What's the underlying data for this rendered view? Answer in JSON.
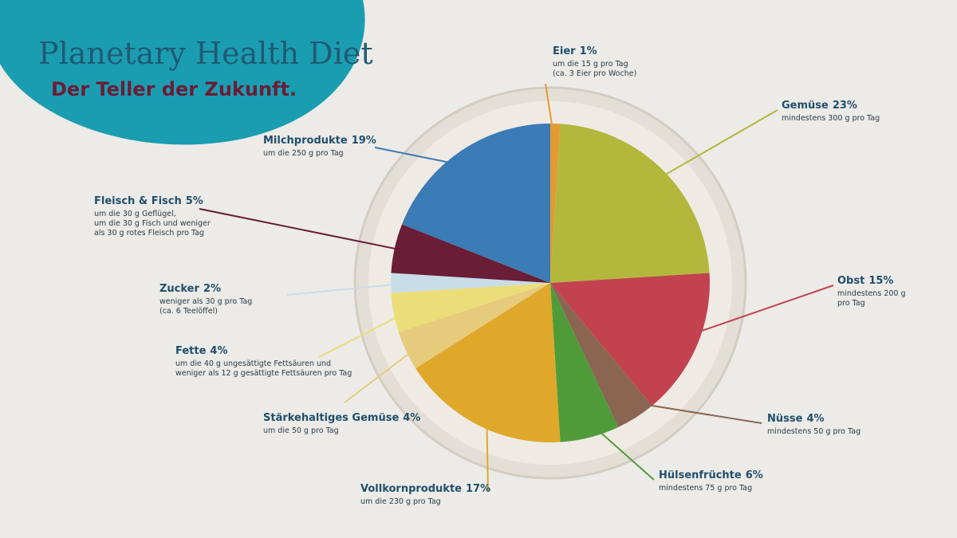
{
  "chart_data": {
    "type": "pie",
    "title": "Planetary Health Diet",
    "subtitle": "Der Teller der Zukunft.",
    "categories": [
      "Eier",
      "Gemüse",
      "Obst",
      "Nüsse",
      "Hülsenfrüchte",
      "Vollkornprodukte",
      "Stärkehaltiges Gemüse",
      "Fette",
      "Zucker",
      "Fleisch & Fisch",
      "Milchprodukte"
    ],
    "values": [
      1,
      23,
      15,
      4,
      6,
      17,
      4,
      4,
      2,
      5,
      19
    ],
    "value_labels": [
      "1%",
      "23%",
      "15%",
      "4%",
      "6%",
      "17%",
      "4%",
      "4%",
      "2%",
      "5%",
      "19%"
    ],
    "descriptions": [
      [
        "um die 15 g pro Tag",
        "(ca. 3 Eier pro Woche)"
      ],
      [
        "mindestens 300 g pro Tag"
      ],
      [
        "mindestens 200 g",
        "pro Tag"
      ],
      [
        "mindestens 50 g pro Tag"
      ],
      [
        "mindestens 75 g pro Tag"
      ],
      [
        "um die 230 g pro Tag"
      ],
      [
        "um die 50 g pro Tag"
      ],
      [
        "um die 40 g ungesättigte Fettsäuren und",
        "weniger als 12 g gesättigte Fettsäuren pro Tag"
      ],
      [
        "weniger als 30 g pro Tag",
        "(ca. 6 Teelöffel)"
      ],
      [
        "um die 30 g Geflügel,",
        "um die 30 g Fisch und weniger",
        "als 30 g rotes Fleisch pro Tag"
      ],
      [
        "um die 250 g pro Tag"
      ]
    ],
    "colors": [
      "#e39a32",
      "#b3b83c",
      "#c2434f",
      "#8a6652",
      "#4f9b3a",
      "#e0a82b",
      "#e6cb7c",
      "#ebde78",
      "#c9dde9",
      "#6a1d36",
      "#3b7bb6"
    ]
  }
}
